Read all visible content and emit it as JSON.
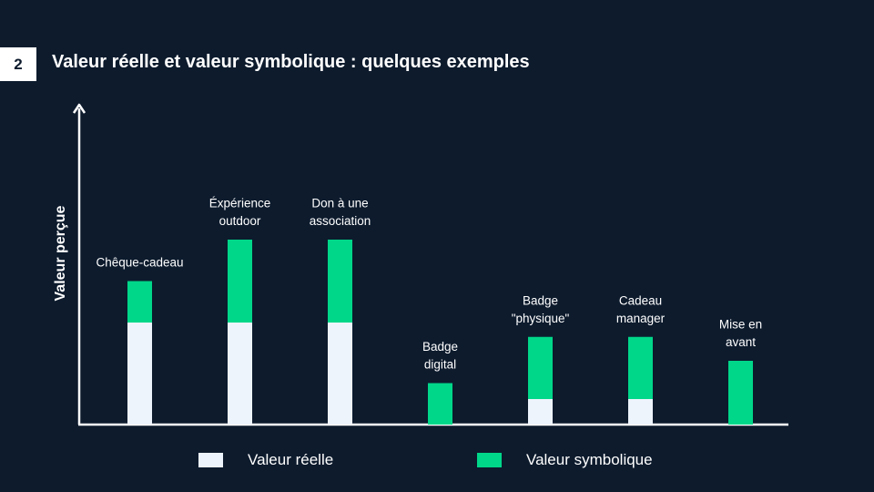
{
  "slide": {
    "number": "2",
    "title": "Valeur réelle et valeur symbolique : quelques exemples"
  },
  "colors": {
    "background": "#0d1b2d",
    "reelle": "#eef4fc",
    "symbolique": "#00d789",
    "axis": "#ffffff"
  },
  "legend": {
    "reelle": "Valeur réelle",
    "symbolique": "Valeur symbolique"
  },
  "chart_data": {
    "type": "bar",
    "stacked": true,
    "ylabel": "Valeur perçue",
    "xlabel": "",
    "ylim": [
      0,
      10
    ],
    "categories": [
      [
        "Chêque-cadeau"
      ],
      [
        "Éxpérience",
        "outdoor"
      ],
      [
        "Don à une",
        "association"
      ],
      [
        "Badge",
        "digital"
      ],
      [
        "Badge",
        "\"physique\""
      ],
      [
        "Cadeau",
        "manager"
      ],
      [
        "Mise en",
        "avant"
      ]
    ],
    "series": [
      {
        "name": "Valeur réelle",
        "values": [
          3.2,
          3.2,
          3.2,
          0,
          0.8,
          0.8,
          0
        ]
      },
      {
        "name": "Valeur symbolique",
        "values": [
          1.3,
          2.6,
          2.6,
          1.3,
          1.95,
          1.95,
          2.0
        ]
      }
    ],
    "grid": false,
    "legend_position": "bottom"
  }
}
